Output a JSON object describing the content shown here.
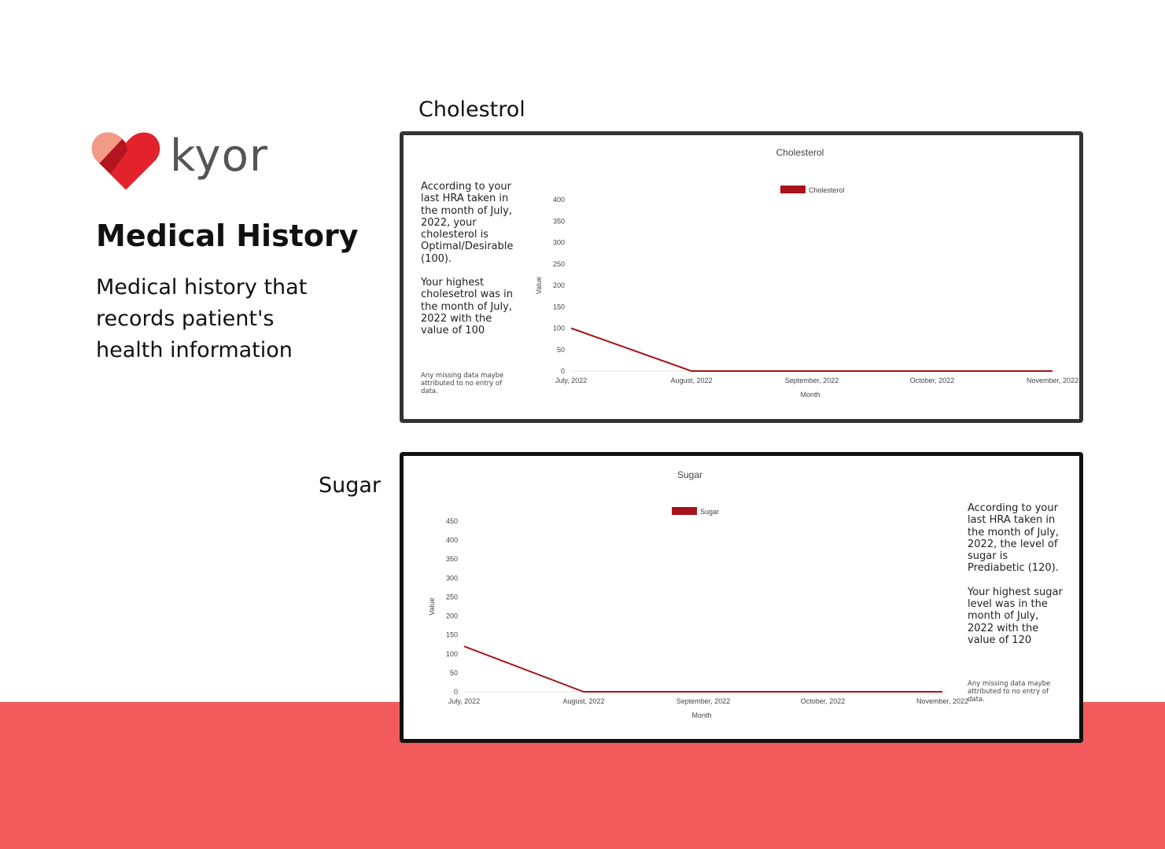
{
  "brand": {
    "name": "kyor",
    "colors": {
      "heart_main": "#e3232c",
      "heart_light": "#f39a86",
      "heart_dark": "#b2151d",
      "band": "#f25a5c"
    }
  },
  "hero": {
    "title": "Medical History",
    "subtitle": "Medical history that records patient's health information"
  },
  "cholesterol_section": {
    "label": "Cholestrol",
    "description": [
      "According to your last HRA taken in the month of July, 2022, your cholesterol is Optimal/Desirable (100).",
      "Your highest cholesetrol was in the month of July, 2022 with the value of 100"
    ],
    "note": "Any missing data maybe attributed to no entry of data."
  },
  "sugar_section": {
    "label": "Sugar",
    "description": [
      "According to your last HRA taken in the month of July, 2022, the level of sugar is Prediabetic (120).",
      "Your highest sugar level was in the month of July, 2022 with the value of 120"
    ],
    "note": "Any missing data maybe attributed to no entry of data."
  },
  "chart_data": [
    {
      "type": "line",
      "title": "Cholesterol",
      "xlabel": "Month",
      "ylabel": "Value",
      "categories": [
        "July, 2022",
        "August, 2022",
        "September, 2022",
        "October, 2022",
        "November, 2022"
      ],
      "series": [
        {
          "name": "Cholesterol",
          "values": [
            100,
            0,
            0,
            0,
            0
          ],
          "color": "#a8121a"
        }
      ],
      "ylim": [
        0,
        400
      ],
      "yticks": [
        0,
        50,
        100,
        150,
        200,
        250,
        300,
        350,
        400
      ],
      "legend": "top-center",
      "grid": false
    },
    {
      "type": "line",
      "title": "Sugar",
      "xlabel": "Month",
      "ylabel": "Value",
      "categories": [
        "July, 2022",
        "August, 2022",
        "September, 2022",
        "October, 2022",
        "November, 2022"
      ],
      "series": [
        {
          "name": "Sugar",
          "values": [
            120,
            0,
            0,
            0,
            0
          ],
          "color": "#a8121a"
        }
      ],
      "ylim": [
        0,
        450
      ],
      "yticks": [
        0,
        50,
        100,
        150,
        200,
        250,
        300,
        350,
        400,
        450
      ],
      "legend": "top-center",
      "grid": false
    }
  ]
}
